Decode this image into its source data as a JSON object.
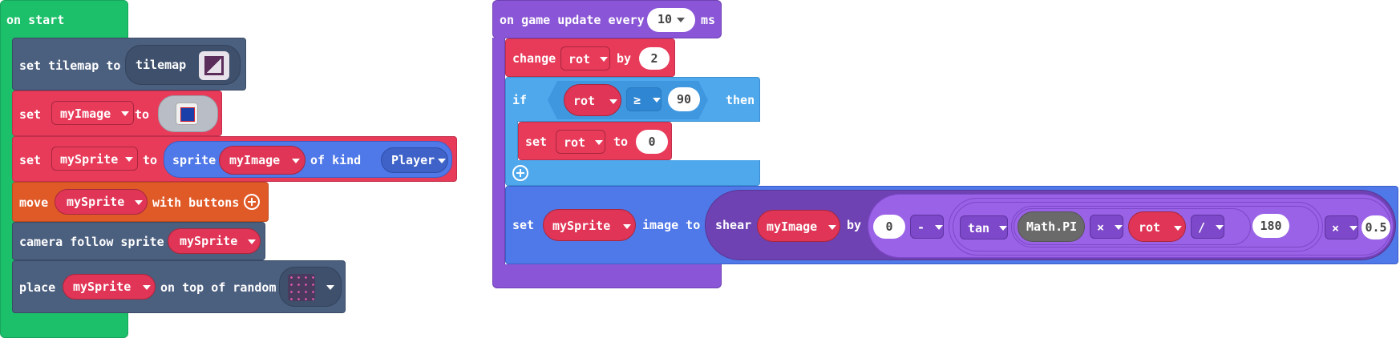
{
  "on_start": {
    "hat_label": "on start",
    "set_tilemap": {
      "label": "set tilemap to",
      "reporter": "tilemap"
    },
    "set_image": {
      "set": "set",
      "variable": "myImage",
      "to": "to"
    },
    "set_sprite": {
      "set": "set",
      "variable": "mySprite",
      "to": "to",
      "sprite": "sprite",
      "image_var": "myImage",
      "of_kind": "of kind",
      "kind": "Player"
    },
    "move": {
      "label": "move",
      "variable": "mySprite",
      "with_buttons": "with buttons"
    },
    "camera": {
      "label": "camera follow sprite",
      "variable": "mySprite"
    },
    "place": {
      "label": "place",
      "variable": "mySprite",
      "on_top": "on top of random"
    }
  },
  "game_update": {
    "hat_label": "on game update every",
    "interval": "10",
    "unit": "ms",
    "change": {
      "label": "change",
      "variable": "rot",
      "by": "by",
      "value": "2"
    },
    "if_block": {
      "if": "if",
      "variable": "rot",
      "operator": "≥",
      "value": "90",
      "then": "then"
    },
    "set_rot": {
      "set": "set",
      "variable": "rot",
      "to": "to",
      "value": "0"
    },
    "set_image": {
      "set": "set",
      "sprite": "mySprite",
      "image_to": "image to",
      "shear": "shear",
      "image": "myImage",
      "by": "by",
      "left": "0",
      "minus": "-",
      "tan": "tan",
      "pi": "Math.PI",
      "times1": "×",
      "rot": "rot",
      "divide": "/",
      "deg": "180",
      "times2": "×",
      "factor": "0.5"
    }
  },
  "colors": {
    "events": "#1cc06a",
    "scene": "#4b5f7f",
    "variables": "#e83b5a",
    "controller": "#e05a28",
    "game": "#8a55d6",
    "logic": "#4fa8ec",
    "sprites": "#4f78e8"
  }
}
